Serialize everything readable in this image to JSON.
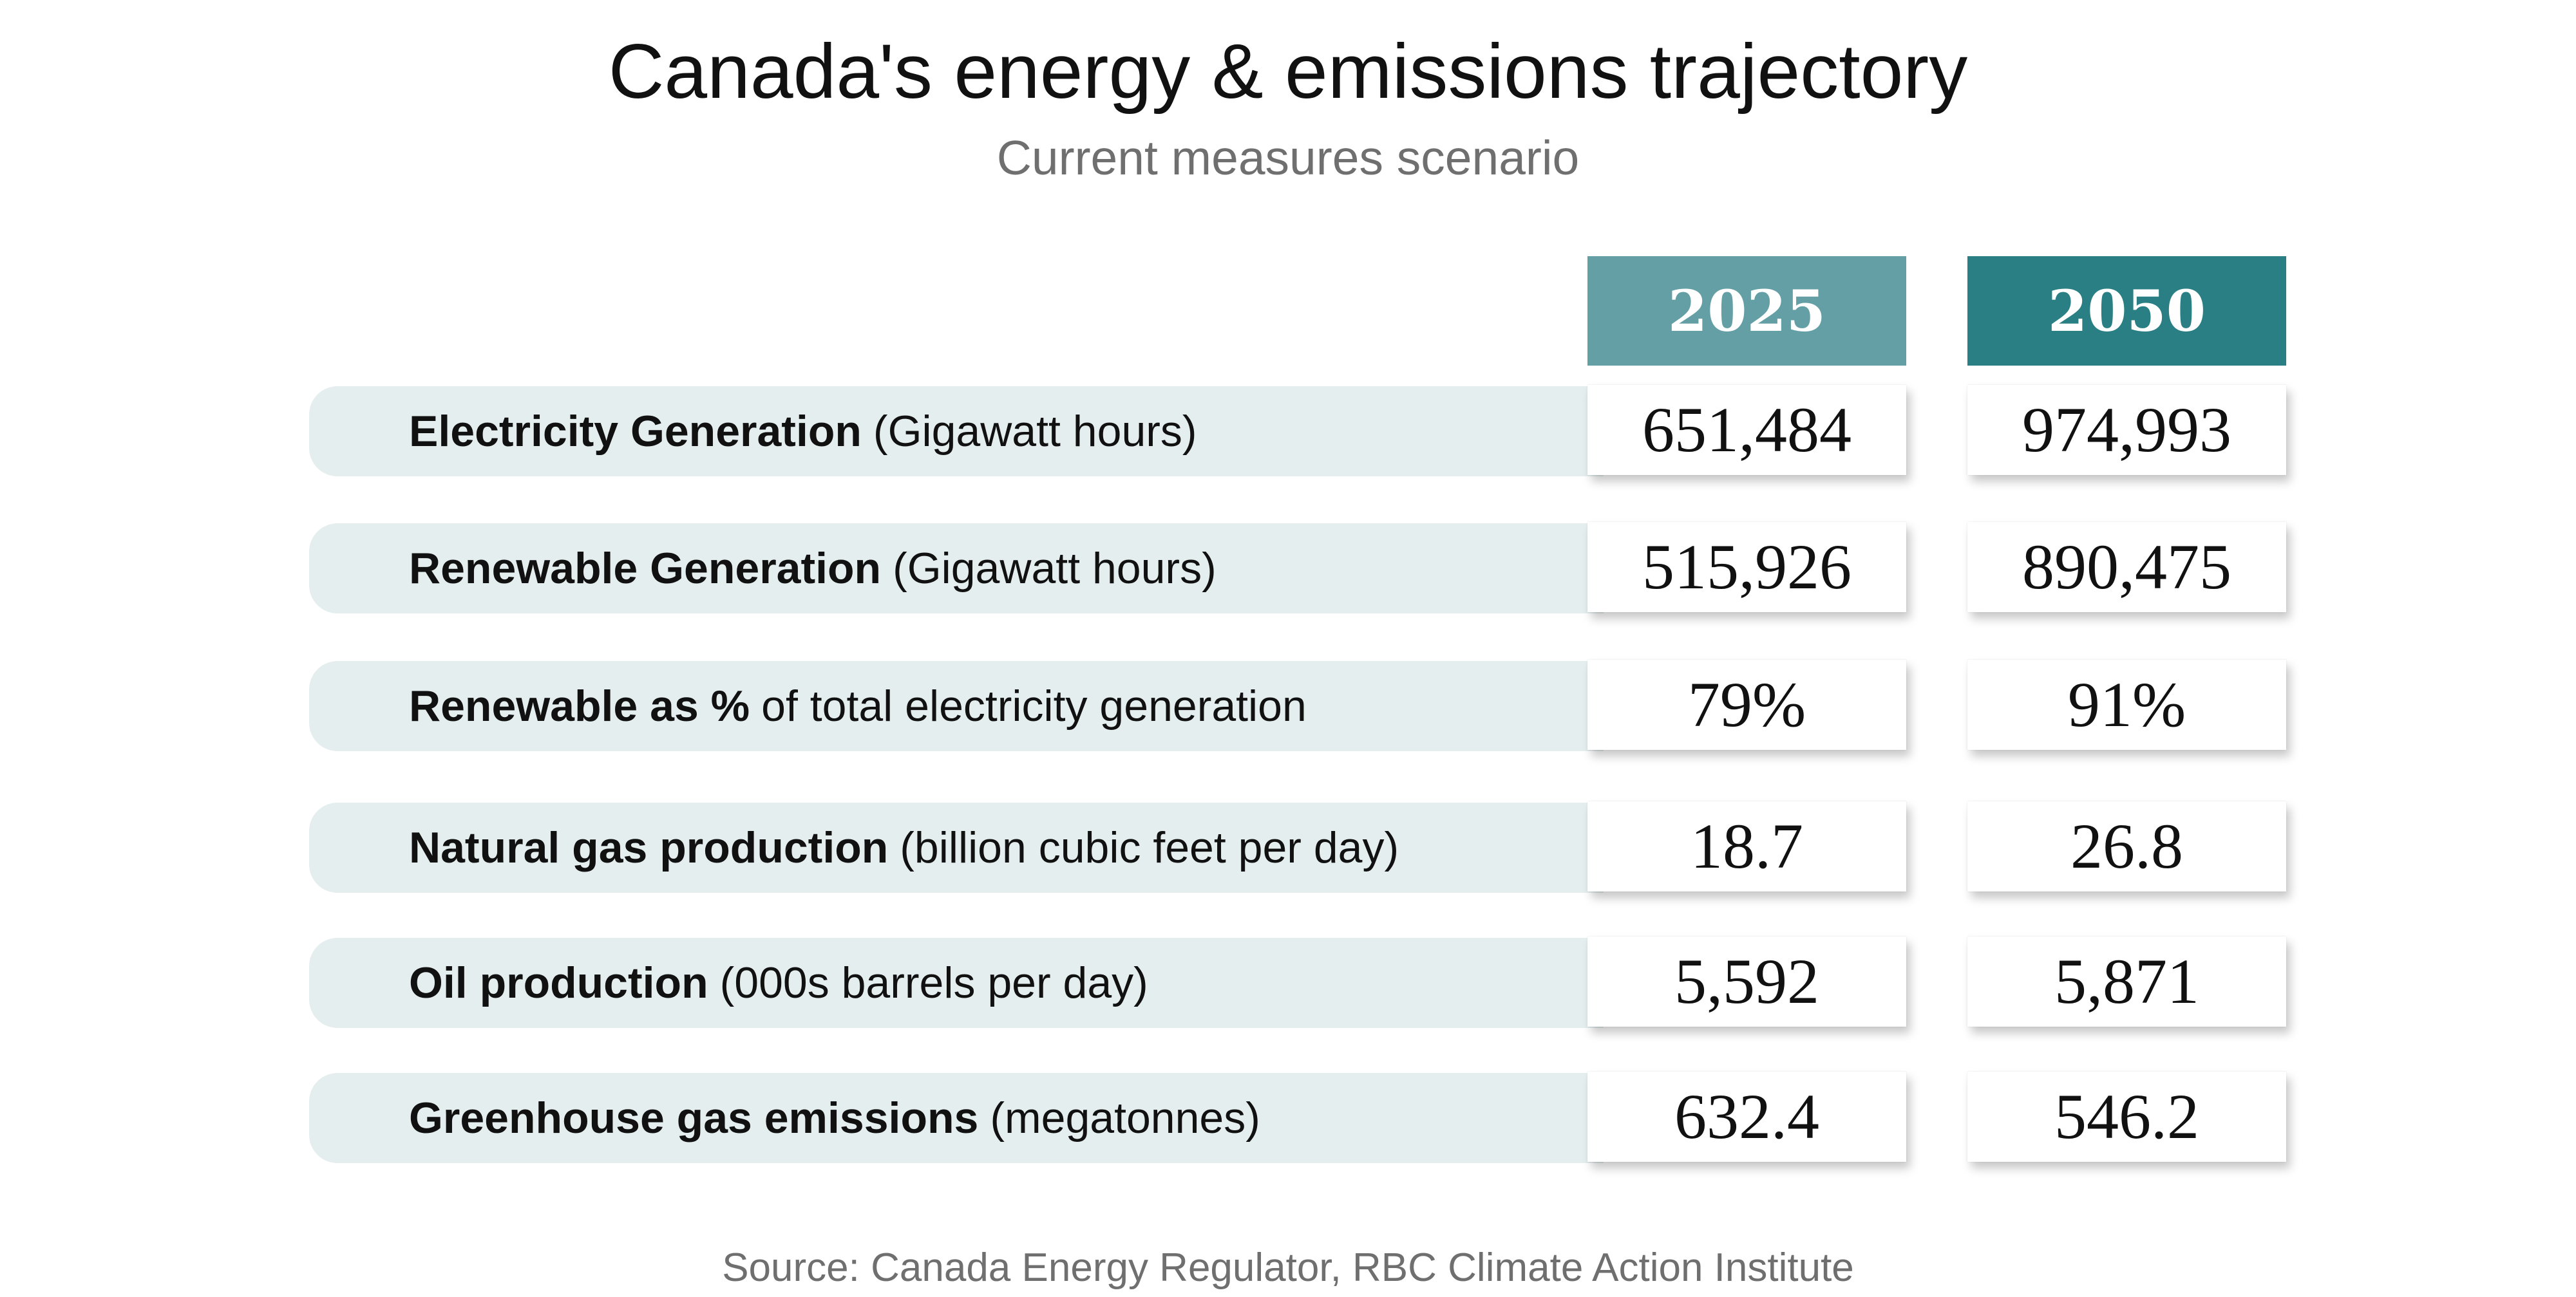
{
  "chart_data": {
    "type": "table",
    "title": "Canada's energy & emissions trajectory",
    "subtitle": "Current measures scenario",
    "columns": [
      "2025",
      "2050"
    ],
    "rows": [
      {
        "label_bold": "Electricity Generation",
        "label_rest": "(Gigawatt hours)",
        "values": [
          "651,484",
          "974,993"
        ]
      },
      {
        "label_bold": "Renewable Generation",
        "label_rest": "(Gigawatt hours)",
        "values": [
          "515,926",
          "890,475"
        ]
      },
      {
        "label_bold": "Renewable as %",
        "label_rest": "of total electricity generation",
        "values": [
          "79%",
          "91%"
        ]
      },
      {
        "label_bold": "Natural gas production",
        "label_rest": "(billion cubic feet per day)",
        "values": [
          "18.7",
          "26.8"
        ]
      },
      {
        "label_bold": "Oil production",
        "label_rest": "(000s barrels per day)",
        "values": [
          "5,592",
          "5,871"
        ]
      },
      {
        "label_bold": "Greenhouse gas emissions",
        "label_rest": "(megatonnes)",
        "values": [
          "632.4",
          "546.2"
        ]
      }
    ],
    "source": "Source: Canada Energy Regulator, RBC Climate Action Institute"
  },
  "colors": {
    "header_2025": "#649fa6",
    "header_2050": "#297f83",
    "row_background": "#e5eeef",
    "title_text": "#111111",
    "muted_text": "#6f6f6f"
  }
}
